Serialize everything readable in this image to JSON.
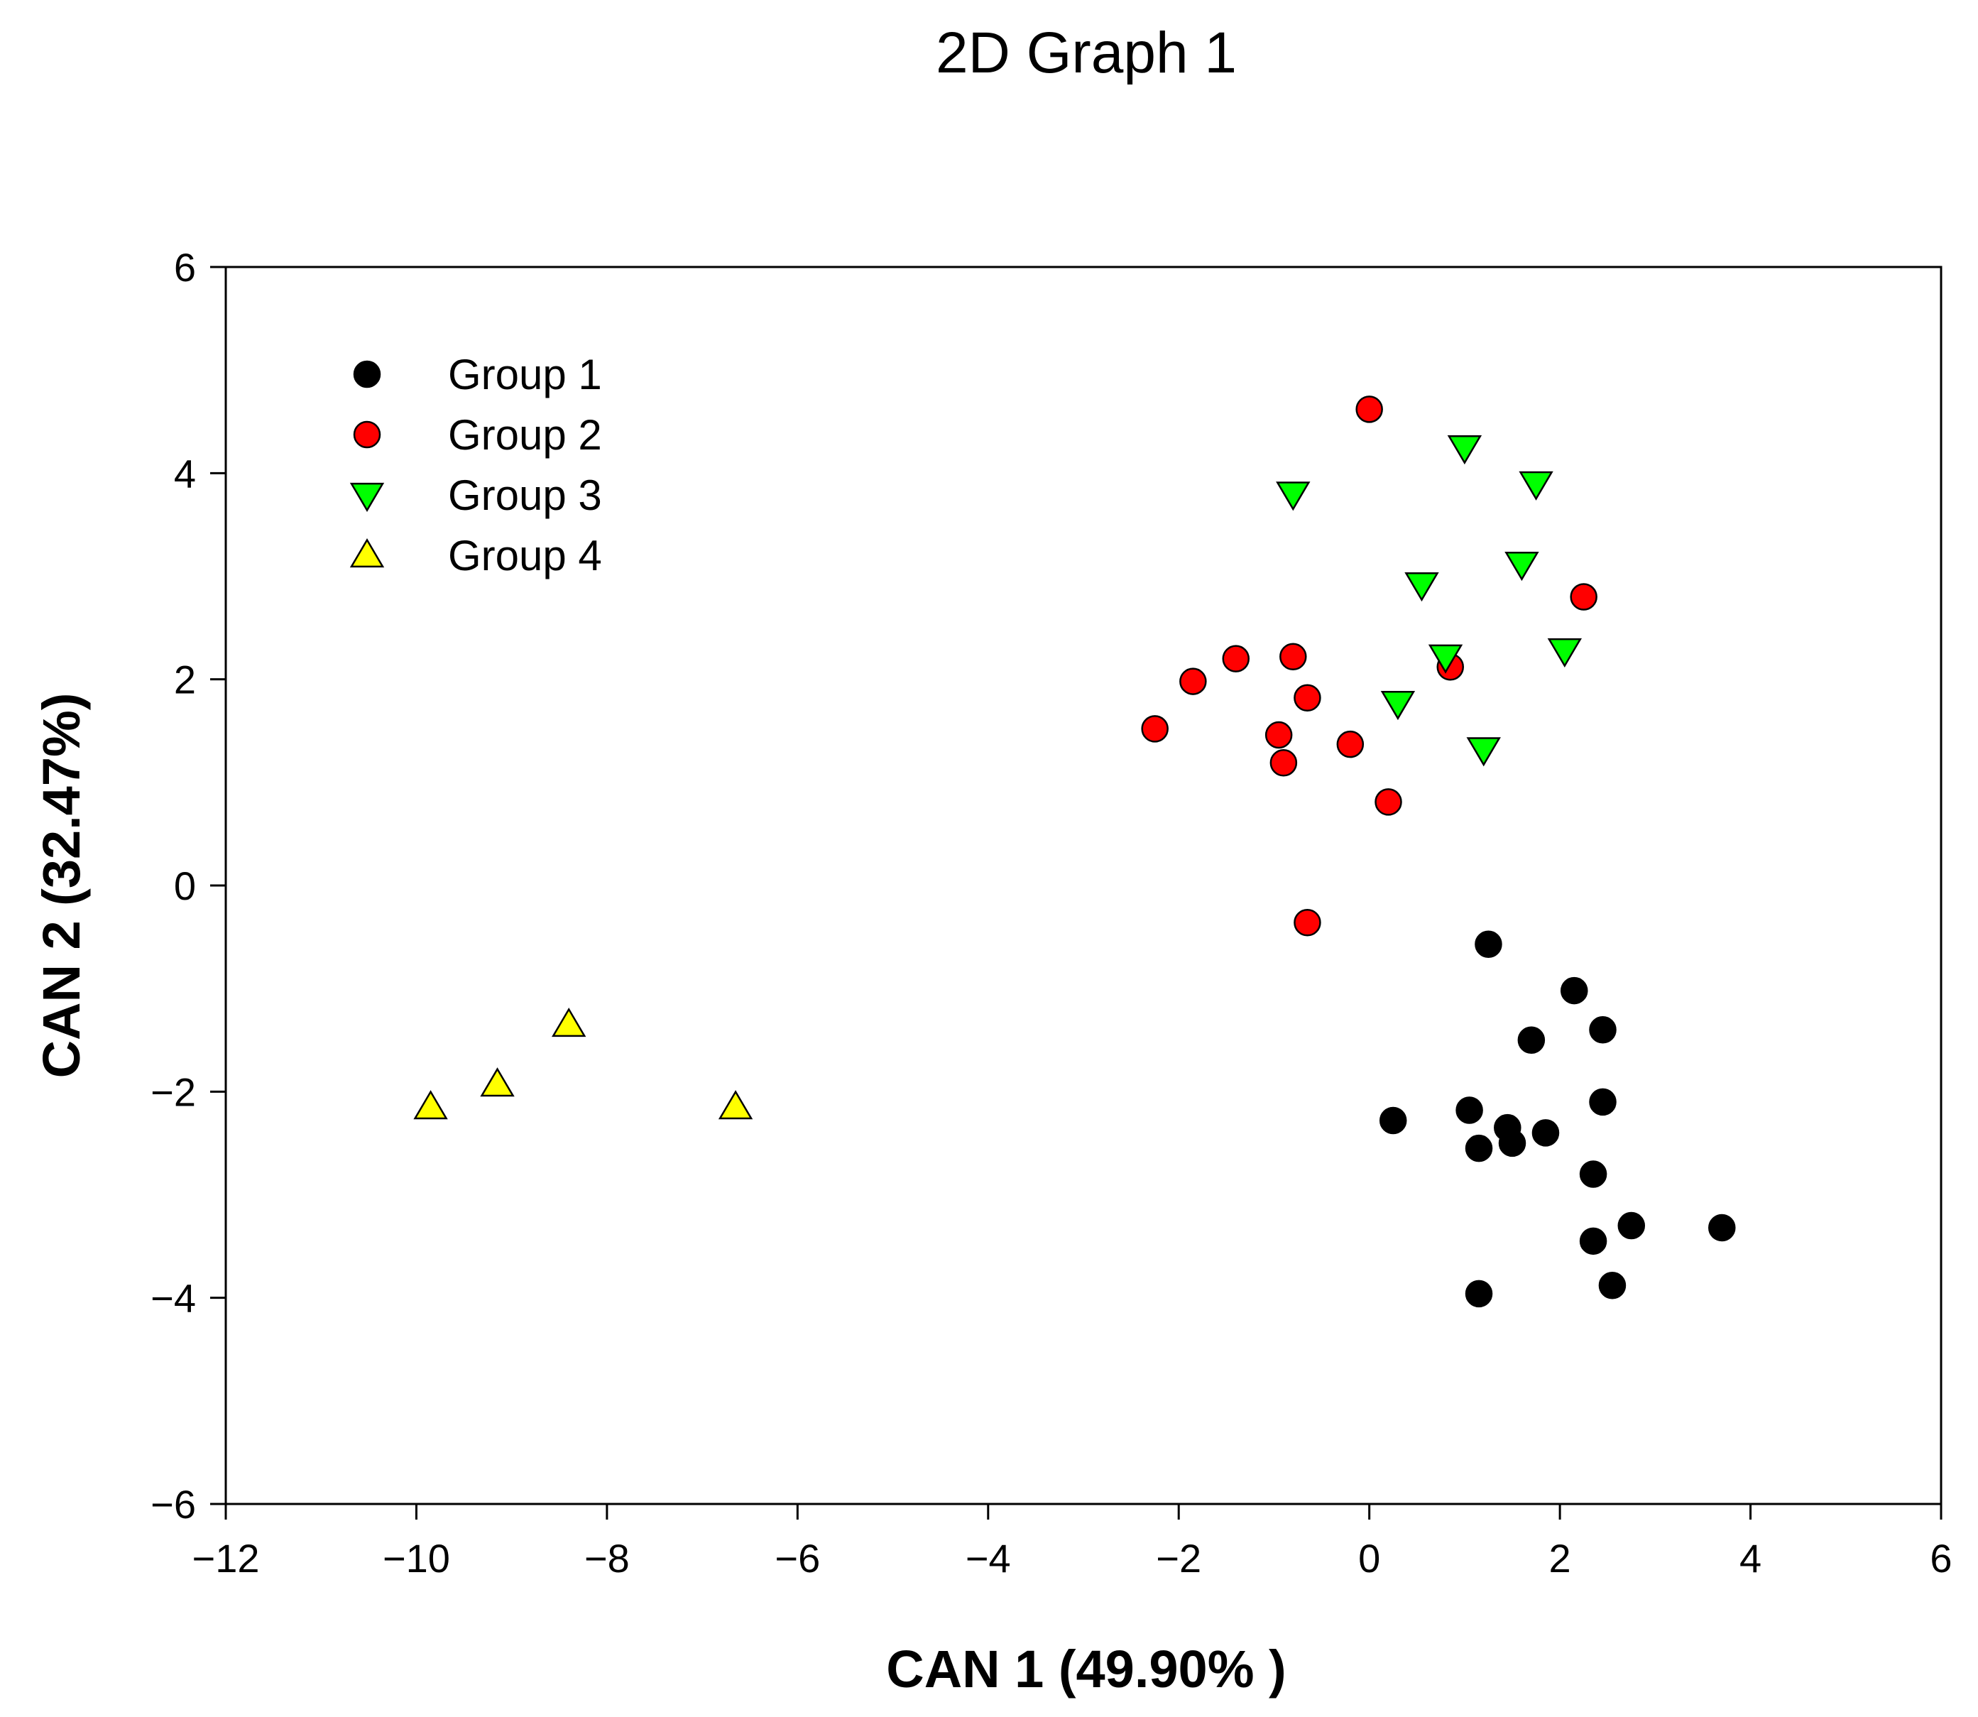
{
  "chart_data": {
    "type": "scatter",
    "title": "2D Graph 1",
    "xlabel": "CAN 1 (49.90% )",
    "ylabel": "CAN 2 (32.47%)",
    "xlim": [
      -12,
      6
    ],
    "ylim": [
      -6,
      6
    ],
    "xticks": [
      -12,
      -10,
      -8,
      -6,
      -4,
      -2,
      0,
      2,
      4,
      6
    ],
    "yticks": [
      -6,
      -4,
      -2,
      0,
      2,
      4,
      6
    ],
    "xtick_labels": [
      "−12",
      "−10",
      "−8",
      "−6",
      "−4",
      "−2",
      "0",
      "2",
      "4",
      "6"
    ],
    "ytick_labels": [
      "−6",
      "−4",
      "−2",
      "0",
      "2",
      "4",
      "6"
    ],
    "grid": false,
    "legend_position": "top-left",
    "series": [
      {
        "name": "Group 1",
        "marker": "circle",
        "color": "#000000",
        "points": [
          [
            1.25,
            -0.57
          ],
          [
            2.15,
            -1.02
          ],
          [
            2.45,
            -1.4
          ],
          [
            1.7,
            -1.5
          ],
          [
            2.45,
            -2.1
          ],
          [
            0.25,
            -2.28
          ],
          [
            1.05,
            -2.18
          ],
          [
            1.45,
            -2.35
          ],
          [
            1.85,
            -2.4
          ],
          [
            1.15,
            -2.55
          ],
          [
            1.5,
            -2.5
          ],
          [
            2.35,
            -2.8
          ],
          [
            2.75,
            -3.3
          ],
          [
            3.7,
            -3.32
          ],
          [
            2.35,
            -3.45
          ],
          [
            2.55,
            -3.88
          ],
          [
            1.15,
            -3.96
          ]
        ]
      },
      {
        "name": "Group 2",
        "marker": "circle",
        "color": "#ff0000",
        "points": [
          [
            0.0,
            4.62
          ],
          [
            2.25,
            2.8
          ],
          [
            -1.4,
            2.2
          ],
          [
            -0.8,
            2.22
          ],
          [
            -1.85,
            1.98
          ],
          [
            0.85,
            2.12
          ],
          [
            -0.65,
            1.82
          ],
          [
            -2.25,
            1.52
          ],
          [
            -0.95,
            1.46
          ],
          [
            -0.2,
            1.37
          ],
          [
            -0.9,
            1.19
          ],
          [
            0.2,
            0.81
          ],
          [
            -0.65,
            -0.36
          ]
        ]
      },
      {
        "name": "Group 3",
        "marker": "triangle-down",
        "color": "#00ff00",
        "points": [
          [
            1.0,
            4.25
          ],
          [
            1.75,
            3.9
          ],
          [
            -0.8,
            3.8
          ],
          [
            1.6,
            3.12
          ],
          [
            0.55,
            2.92
          ],
          [
            0.8,
            2.22
          ],
          [
            2.05,
            2.28
          ],
          [
            0.3,
            1.77
          ],
          [
            1.2,
            1.32
          ]
        ]
      },
      {
        "name": "Group 4",
        "marker": "triangle-up",
        "color": "#ffff00",
        "points": [
          [
            -8.4,
            -1.35
          ],
          [
            -9.15,
            -1.93
          ],
          [
            -9.85,
            -2.15
          ],
          [
            -6.65,
            -2.15
          ]
        ]
      }
    ]
  }
}
